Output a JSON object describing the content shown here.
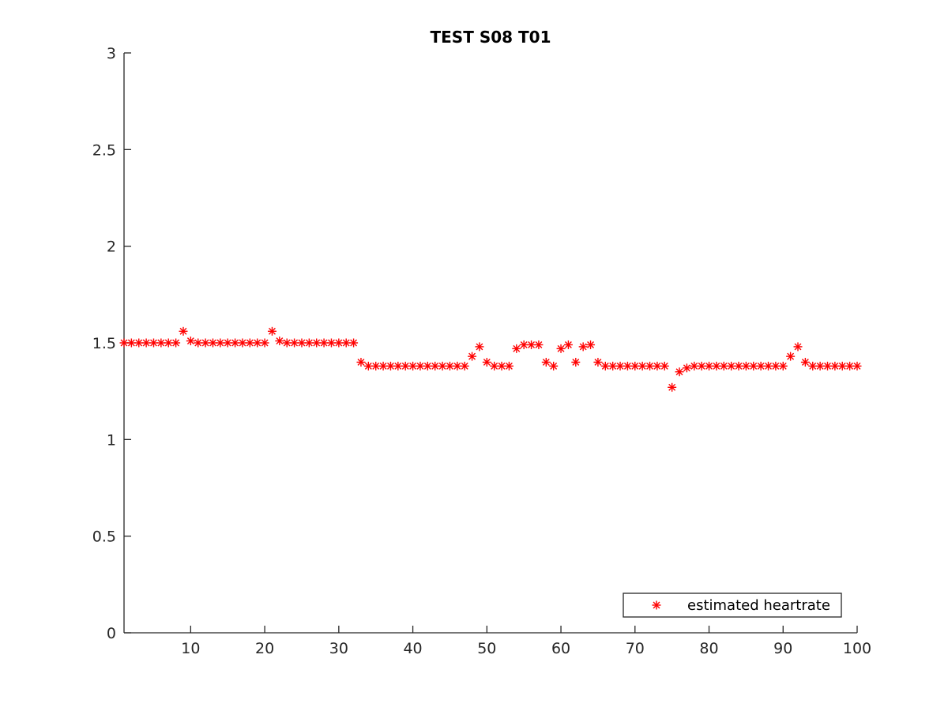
{
  "chart_data": {
    "type": "scatter",
    "title": "TEST S08 T01",
    "xlabel": "",
    "ylabel": "",
    "xlim": [
      1,
      100
    ],
    "ylim": [
      0,
      3
    ],
    "x_ticks": [
      10,
      20,
      30,
      40,
      50,
      60,
      70,
      80,
      90,
      100
    ],
    "x_tick_labels": [
      "10",
      "20",
      "30",
      "40",
      "50",
      "60",
      "70",
      "80",
      "90",
      "100"
    ],
    "y_ticks": [
      0,
      0.5,
      1,
      1.5,
      2,
      2.5,
      3
    ],
    "y_tick_labels": [
      "0",
      "0.5",
      "1",
      "1.5",
      "2",
      "2.5",
      "3"
    ],
    "grid": false,
    "legend": {
      "placement": "bottom-right",
      "entries": [
        "estimated heartrate"
      ]
    },
    "series": [
      {
        "name": "estimated heartrate",
        "marker": "asterisk",
        "color": "#ff0000",
        "x": [
          1,
          2,
          3,
          4,
          5,
          6,
          7,
          8,
          9,
          10,
          11,
          12,
          13,
          14,
          15,
          16,
          17,
          18,
          19,
          20,
          21,
          22,
          23,
          24,
          25,
          26,
          27,
          28,
          29,
          30,
          31,
          32,
          33,
          34,
          35,
          36,
          37,
          38,
          39,
          40,
          41,
          42,
          43,
          44,
          45,
          46,
          47,
          48,
          49,
          50,
          51,
          52,
          53,
          54,
          55,
          56,
          57,
          58,
          59,
          60,
          61,
          62,
          63,
          64,
          65,
          66,
          67,
          68,
          69,
          70,
          71,
          72,
          73,
          74,
          75,
          76,
          77,
          78,
          79,
          80,
          81,
          82,
          83,
          84,
          85,
          86,
          87,
          88,
          89,
          90,
          91,
          92,
          93,
          94,
          95,
          96,
          97,
          98,
          99,
          100
        ],
        "y": [
          1.5,
          1.5,
          1.5,
          1.5,
          1.5,
          1.5,
          1.5,
          1.5,
          1.56,
          1.51,
          1.5,
          1.5,
          1.5,
          1.5,
          1.5,
          1.5,
          1.5,
          1.5,
          1.5,
          1.5,
          1.56,
          1.51,
          1.5,
          1.5,
          1.5,
          1.5,
          1.5,
          1.5,
          1.5,
          1.5,
          1.5,
          1.5,
          1.4,
          1.38,
          1.38,
          1.38,
          1.38,
          1.38,
          1.38,
          1.38,
          1.38,
          1.38,
          1.38,
          1.38,
          1.38,
          1.38,
          1.38,
          1.43,
          1.48,
          1.4,
          1.38,
          1.38,
          1.38,
          1.47,
          1.49,
          1.49,
          1.49,
          1.4,
          1.38,
          1.47,
          1.49,
          1.4,
          1.48,
          1.49,
          1.4,
          1.38,
          1.38,
          1.38,
          1.38,
          1.38,
          1.38,
          1.38,
          1.38,
          1.38,
          1.27,
          1.35,
          1.37,
          1.38,
          1.38,
          1.38,
          1.38,
          1.38,
          1.38,
          1.38,
          1.38,
          1.38,
          1.38,
          1.38,
          1.38,
          1.38,
          1.43,
          1.48,
          1.4,
          1.38,
          1.38,
          1.38,
          1.38,
          1.38,
          1.38,
          1.38
        ]
      }
    ]
  }
}
